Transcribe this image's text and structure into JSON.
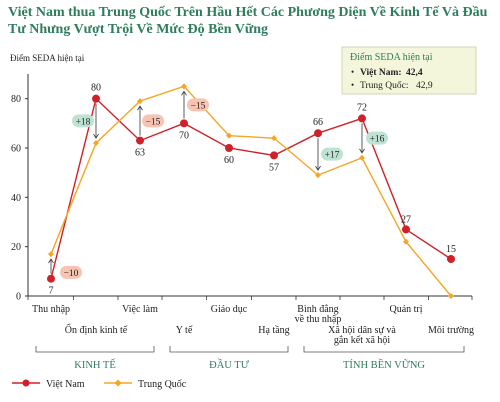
{
  "title": {
    "line1": "Việt Nam thua Trung Quốc Trên Hầu Hết Các Phương Diện Về Kinh Tế Và Đầu",
    "line2": "Tư Nhưng Vượt Trội Về Mức Độ Bền Vững"
  },
  "colors": {
    "vietnam": "#d0202a",
    "china": "#f5a623",
    "title": "#2e7d5c",
    "badge_green": "#bfe3d3",
    "badge_red": "#f7c4b4",
    "info_box": "#f3f6da"
  },
  "info_box": {
    "title": "Điểm SEDA hiện tại",
    "vietnam_label": "Việt Nam:",
    "vietnam_value": "42,4",
    "china_label": "Trung Quốc:",
    "china_value": "42,9"
  },
  "chart_data": {
    "type": "line",
    "ylabel": "Điểm SEDA hiện tại",
    "ylim": [
      0,
      90
    ],
    "yticks": [
      "0",
      "20",
      "40",
      "60",
      "80"
    ],
    "categories": [
      "Thu nhập",
      "Ổn định kinh tế",
      "Việc làm",
      "Y tế",
      "Giáo dục",
      "Hạ tầng",
      "Bình đẳng về thu nhập",
      "Xã hội dân sự và gắn kết xã hội",
      "Quản trị",
      "Môi trường"
    ],
    "category_labels": [
      [
        "Thu nhập"
      ],
      [
        "Ổn định kinh tế"
      ],
      [
        "Việc làm"
      ],
      [
        "Y tế"
      ],
      [
        "Giáo dục"
      ],
      [
        "Hạ tầng"
      ],
      [
        "Bình đẳng",
        "về thu nhập"
      ],
      [
        "Xã hội dân sự và",
        "gắn kết xã hội"
      ],
      [
        "Quản trị"
      ],
      [
        "Môi trường"
      ]
    ],
    "series": [
      {
        "name": "Việt Nam",
        "values": [
          7,
          80,
          63,
          70,
          60,
          57,
          66,
          72,
          27,
          15
        ]
      },
      {
        "name": "Trung Quốc",
        "values": [
          17,
          62,
          79,
          85,
          65,
          64,
          49,
          56,
          22,
          0
        ]
      }
    ],
    "data_labels": [
      "7",
      "80",
      "63",
      "70",
      "60",
      "57",
      "66",
      "72",
      "27",
      "15"
    ],
    "differences": [
      {
        "index": 0,
        "label": "−10",
        "kind": "negative"
      },
      {
        "index": 1,
        "label": "+18",
        "kind": "positive"
      },
      {
        "index": 2,
        "label": "−15",
        "kind": "negative"
      },
      {
        "index": 3,
        "label": "−15",
        "kind": "negative"
      },
      {
        "index": 6,
        "label": "+17",
        "kind": "positive"
      },
      {
        "index": 7,
        "label": "+16",
        "kind": "positive"
      }
    ],
    "groups": [
      {
        "label": "KINH TẾ",
        "from": 0,
        "to": 2
      },
      {
        "label": "ĐẦU TƯ",
        "from": 3,
        "to": 5
      },
      {
        "label": "TÍNH BỀN VỮNG",
        "from": 6,
        "to": 9
      }
    ],
    "legend": [
      "Việt Nam",
      "Trung Quốc"
    ],
    "legend_position": "bottom-left",
    "grid": false
  }
}
